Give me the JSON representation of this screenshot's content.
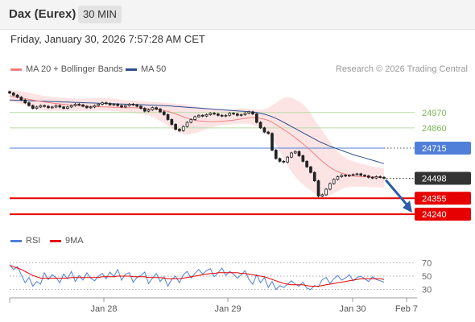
{
  "header": {
    "title": "Dax (Eurex)",
    "interval": "30 MIN",
    "datetime": "Friday, January 30, 2026 7:57:28 AM CET"
  },
  "legend": {
    "ma20": "MA 20 + Bollinger Bands",
    "ma50": "MA 50",
    "rsi": "RSI",
    "rsi_ma": "9MA",
    "credit": "Research © 2026 Trading Central"
  },
  "colors": {
    "ma20": "#f08080",
    "ma50": "#2e4e8f",
    "bollinger_fill": "#fde4e4",
    "resistance": "#b9dca6",
    "pivot": "#4f7fd8",
    "support": "#e60000",
    "current": "#333333",
    "arrow": "#2b5ea8",
    "rsi": "#4f7fd8",
    "rsi_ma": "#e60000"
  },
  "chart_data": [
    {
      "type": "line",
      "name": "price",
      "ylim": [
        24160,
        25200
      ],
      "x_ticks": [
        "Jan 28",
        "Jan 29",
        "Jan 30",
        "Feb 7"
      ],
      "levels": [
        {
          "value": 24970,
          "label": "24970",
          "kind": "resistance"
        },
        {
          "value": 24860,
          "label": "24860",
          "kind": "resistance"
        },
        {
          "value": 24715,
          "label": "24715",
          "kind": "pivot"
        },
        {
          "value": 24498,
          "label": "24498",
          "kind": "current"
        },
        {
          "value": 24355,
          "label": "24355",
          "kind": "support"
        },
        {
          "value": 24240,
          "label": "24240",
          "kind": "support"
        }
      ],
      "close": [
        25110,
        25095,
        25080,
        25060,
        25040,
        25020,
        25000,
        25010,
        25020,
        25015,
        25005,
        25010,
        25020,
        25010,
        25000,
        25010,
        25020,
        25030,
        25025,
        25015,
        25005,
        25010,
        25020,
        25030,
        25040,
        25035,
        25025,
        25030,
        25020,
        25010,
        25020,
        25030,
        25025,
        25015,
        25000,
        24980,
        24990,
        25005,
        24995,
        24975,
        24955,
        24920,
        24885,
        24850,
        24840,
        24870,
        24900,
        24920,
        24940,
        24950,
        24945,
        24955,
        24965,
        24960,
        24950,
        24945,
        24950,
        24965,
        24960,
        24950,
        24955,
        24965,
        24975,
        24960,
        24900,
        24860,
        24830,
        24820,
        24700,
        24640,
        24620,
        24615,
        24650,
        24680,
        24690,
        24660,
        24620,
        24580,
        24540,
        24480,
        24370,
        24380,
        24420,
        24460,
        24490,
        24510,
        24520,
        24515,
        24520,
        24525,
        24530,
        24520,
        24515,
        24505,
        24500,
        24510,
        24505,
        24498
      ],
      "ma20": [
        25090,
        25085,
        25080,
        25075,
        25070,
        25065,
        25060,
        25055,
        25050,
        25046,
        25042,
        25038,
        25035,
        25032,
        25029,
        25026,
        25023,
        25020,
        25018,
        25016,
        25015,
        25014,
        25013,
        25012,
        25011,
        25010,
        25009,
        25008,
        25007,
        25006,
        25005,
        25005,
        25005,
        25004,
        25002,
        25000,
        24998,
        24996,
        24994,
        24990,
        24985,
        24978,
        24970,
        24960,
        24950,
        24940,
        24930,
        24922,
        24915,
        24910,
        24908,
        24906,
        24905,
        24905,
        24906,
        24908,
        24910,
        24913,
        24916,
        24920,
        24924,
        24928,
        24932,
        24934,
        24932,
        24928,
        24922,
        24914,
        24900,
        24884,
        24866,
        24848,
        24830,
        24810,
        24790,
        24768,
        24746,
        24722,
        24698,
        24672,
        24645,
        24620,
        24597,
        24577,
        24560,
        24546,
        24535,
        24527,
        24520,
        24515,
        24512,
        24510,
        24509,
        24509,
        24508,
        24507,
        24505,
        24500
      ],
      "ma50": [
        25060,
        25059,
        25058,
        25057,
        25056,
        25055,
        25054,
        25053,
        25052,
        25051,
        25050,
        25049,
        25048,
        25047,
        25046,
        25045,
        25044,
        25043,
        25042,
        25041,
        25040,
        25039,
        25038,
        25037,
        25036,
        25035,
        25034,
        25033,
        25032,
        25031,
        25030,
        25029,
        25028,
        25027,
        25026,
        25025,
        25024,
        25023,
        25022,
        25021,
        25020,
        25018,
        25016,
        25014,
        25012,
        25010,
        25008,
        25006,
        25004,
        25002,
        25000,
        24998,
        24996,
        24994,
        24992,
        24990,
        24988,
        24986,
        24984,
        24982,
        24980,
        24978,
        24976,
        24974,
        24970,
        24965,
        24958,
        24950,
        24940,
        24928,
        24915,
        24900,
        24885,
        24870,
        24855,
        24840,
        24825,
        24810,
        24795,
        24780,
        24765,
        24752,
        24740,
        24728,
        24718,
        24708,
        24698,
        24688,
        24678,
        24668,
        24660,
        24652,
        24644,
        24636,
        24628,
        24620,
        24612,
        24604
      ],
      "bb_upper": [
        25130,
        25128,
        25125,
        25122,
        25118,
        25112,
        25106,
        25100,
        25094,
        25090,
        25086,
        25082,
        25080,
        25078,
        25076,
        25074,
        25072,
        25070,
        25070,
        25070,
        25071,
        25072,
        25073,
        25074,
        25075,
        25074,
        25072,
        25070,
        25066,
        25062,
        25060,
        25058,
        25056,
        25054,
        25052,
        25050,
        25048,
        25046,
        25044,
        25042,
        25040,
        25038,
        25036,
        25034,
        25032,
        25030,
        25025,
        25020,
        25015,
        25010,
        25005,
        25000,
        24995,
        24992,
        24990,
        24990,
        24990,
        24992,
        24995,
        24998,
        25000,
        25000,
        24998,
        24995,
        24992,
        24990,
        24995,
        25005,
        25020,
        25040,
        25060,
        25075,
        25080,
        25075,
        25065,
        25050,
        25030,
        25000,
        24965,
        24920,
        24880,
        24840,
        24800,
        24760,
        24720,
        24690,
        24665,
        24645,
        24630,
        24620,
        24612,
        24605,
        24598,
        24590,
        24585,
        24580,
        24575,
        24570
      ],
      "bb_lower": [
        25050,
        25045,
        25040,
        25032,
        25025,
        25015,
        25005,
        24995,
        24990,
        24986,
        24984,
        24982,
        24982,
        24982,
        24982,
        24982,
        24982,
        24982,
        24982,
        24982,
        24982,
        24982,
        24983,
        24984,
        24985,
        24984,
        24982,
        24980,
        24978,
        24974,
        24970,
        24968,
        24966,
        24964,
        24962,
        24958,
        24950,
        24940,
        24926,
        24910,
        24892,
        24874,
        24856,
        24840,
        24826,
        24815,
        24810,
        24815,
        24822,
        24830,
        24840,
        24850,
        24860,
        24868,
        24875,
        24880,
        24882,
        24884,
        24886,
        24888,
        24890,
        24890,
        24888,
        24882,
        24870,
        24855,
        24835,
        24810,
        24780,
        24740,
        24690,
        24640,
        24590,
        24545,
        24510,
        24480,
        24455,
        24432,
        24412,
        24392,
        24375,
        24365,
        24365,
        24375,
        24390,
        24405,
        24420,
        24430,
        24435,
        24437,
        24438,
        24438,
        24437,
        24436,
        24435,
        24434,
        24432,
        24430
      ]
    },
    {
      "type": "line",
      "name": "rsi",
      "ylim": [
        20,
        80
      ],
      "y_ticks": [
        70,
        50,
        30
      ],
      "rsi": [
        67,
        60,
        64,
        52,
        40,
        48,
        35,
        42,
        38,
        55,
        45,
        52,
        48,
        40,
        53,
        46,
        57,
        42,
        51,
        44,
        55,
        47,
        43,
        50,
        54,
        46,
        56,
        49,
        60,
        44,
        53,
        55,
        41,
        48,
        51,
        56,
        39,
        47,
        54,
        42,
        49,
        35,
        45,
        50,
        40,
        52,
        57,
        47,
        54,
        60,
        53,
        58,
        61,
        49,
        55,
        62,
        51,
        57,
        53,
        47,
        52,
        58,
        45,
        38,
        52,
        40,
        48,
        33,
        42,
        30,
        36,
        33,
        38,
        43,
        38,
        35,
        41,
        32,
        30,
        36,
        34,
        45,
        48,
        39,
        46,
        51,
        44,
        47,
        52,
        43,
        48,
        50,
        46,
        42,
        49,
        45,
        43,
        41
      ],
      "rsi_ma": [
        66,
        64,
        62,
        60,
        57,
        54,
        51,
        49,
        47,
        47,
        47,
        47,
        47,
        47,
        47,
        47,
        48,
        48,
        48,
        48,
        48,
        48,
        48,
        48,
        49,
        49,
        49,
        49,
        50,
        50,
        50,
        50,
        49,
        49,
        49,
        49,
        48,
        48,
        48,
        48,
        47,
        46,
        46,
        46,
        46,
        47,
        48,
        49,
        50,
        51,
        52,
        53,
        54,
        54,
        55,
        55,
        55,
        55,
        55,
        55,
        54,
        54,
        53,
        52,
        51,
        50,
        49,
        47,
        45,
        43,
        41,
        39,
        38,
        37,
        37,
        37,
        37,
        36,
        35,
        35,
        35,
        36,
        37,
        38,
        39,
        40,
        41,
        42,
        43,
        44,
        45,
        46,
        46,
        46,
        46,
        46,
        46,
        45
      ]
    }
  ]
}
